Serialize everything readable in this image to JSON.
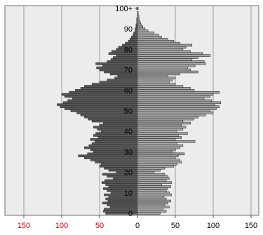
{
  "chart_data": {
    "type": "bar",
    "orientation": "horizontal",
    "layout": "population-pyramid",
    "title": "",
    "xlabel": "",
    "ylabel": "",
    "xlim": [
      -150,
      150
    ],
    "ylim": [
      0,
      101
    ],
    "grid": true,
    "x_tick_labels": [
      "150",
      "100",
      "50",
      "0",
      "50",
      "100",
      "150"
    ],
    "x_tick_values": [
      -150,
      -100,
      -50,
      0,
      50,
      100,
      150
    ],
    "y_tick_labels": [
      "0",
      "10",
      "20",
      "30",
      "40",
      "50",
      "60",
      "70",
      "80",
      "90",
      "100+"
    ],
    "y_tick_values": [
      0,
      10,
      20,
      30,
      40,
      50,
      60,
      70,
      80,
      90,
      100
    ],
    "colors": {
      "left_series": "#595959",
      "right_series": "#a6a6a6",
      "bar_edge": "#2b2b2b",
      "plot_background": "#ececec",
      "gridline": "#9a9a9a",
      "left_tick_label": "#cc0000",
      "right_tick_label": "#000000"
    },
    "ages": [
      0,
      1,
      2,
      3,
      4,
      5,
      6,
      7,
      8,
      9,
      10,
      11,
      12,
      13,
      14,
      15,
      16,
      17,
      18,
      19,
      20,
      21,
      22,
      23,
      24,
      25,
      26,
      27,
      28,
      29,
      30,
      31,
      32,
      33,
      34,
      35,
      36,
      37,
      38,
      39,
      40,
      41,
      42,
      43,
      44,
      45,
      46,
      47,
      48,
      49,
      50,
      51,
      52,
      53,
      54,
      55,
      56,
      57,
      58,
      59,
      60,
      61,
      62,
      63,
      64,
      65,
      66,
      67,
      68,
      69,
      70,
      71,
      72,
      73,
      74,
      75,
      76,
      77,
      78,
      79,
      80,
      81,
      82,
      83,
      84,
      85,
      86,
      87,
      88,
      89,
      90,
      91,
      92,
      93,
      94,
      95,
      96,
      97,
      98,
      99,
      100
    ],
    "series": [
      {
        "side": "left",
        "values": [
          42,
          45,
          44,
          36,
          40,
          46,
          39,
          42,
          38,
          44,
          35,
          40,
          45,
          38,
          42,
          47,
          43,
          32,
          40,
          46,
          28,
          38,
          44,
          50,
          48,
          56,
          62,
          70,
          78,
          66,
          58,
          62,
          70,
          64,
          60,
          56,
          62,
          52,
          58,
          55,
          48,
          53,
          58,
          50,
          45,
          60,
          65,
          70,
          75,
          80,
          88,
          96,
          102,
          106,
          98,
          92,
          86,
          96,
          100,
          90,
          82,
          75,
          70,
          60,
          50,
          40,
          30,
          26,
          36,
          44,
          50,
          54,
          46,
          55,
          40,
          35,
          32,
          28,
          38,
          34,
          28,
          25,
          20,
          16,
          12,
          10,
          8,
          6,
          5,
          3,
          3,
          2,
          2,
          1,
          1,
          1,
          0,
          0,
          0,
          0,
          1
        ]
      },
      {
        "side": "right",
        "values": [
          30,
          38,
          34,
          42,
          36,
          40,
          44,
          38,
          35,
          45,
          42,
          38,
          40,
          44,
          32,
          45,
          38,
          42,
          40,
          36,
          22,
          30,
          36,
          48,
          52,
          58,
          56,
          50,
          54,
          62,
          46,
          50,
          56,
          60,
          52,
          76,
          50,
          58,
          54,
          66,
          52,
          60,
          64,
          58,
          70,
          60,
          74,
          80,
          90,
          100,
          96,
          104,
          108,
          102,
          110,
          98,
          88,
          96,
          100,
          108,
          75,
          70,
          60,
          50,
          42,
          46,
          50,
          40,
          56,
          80,
          70,
          66,
          76,
          90,
          88,
          72,
          80,
          96,
          86,
          70,
          60,
          64,
          72,
          56,
          48,
          40,
          32,
          28,
          22,
          14,
          10,
          7,
          5,
          4,
          3,
          2,
          2,
          1,
          1,
          0,
          1
        ]
      }
    ]
  }
}
